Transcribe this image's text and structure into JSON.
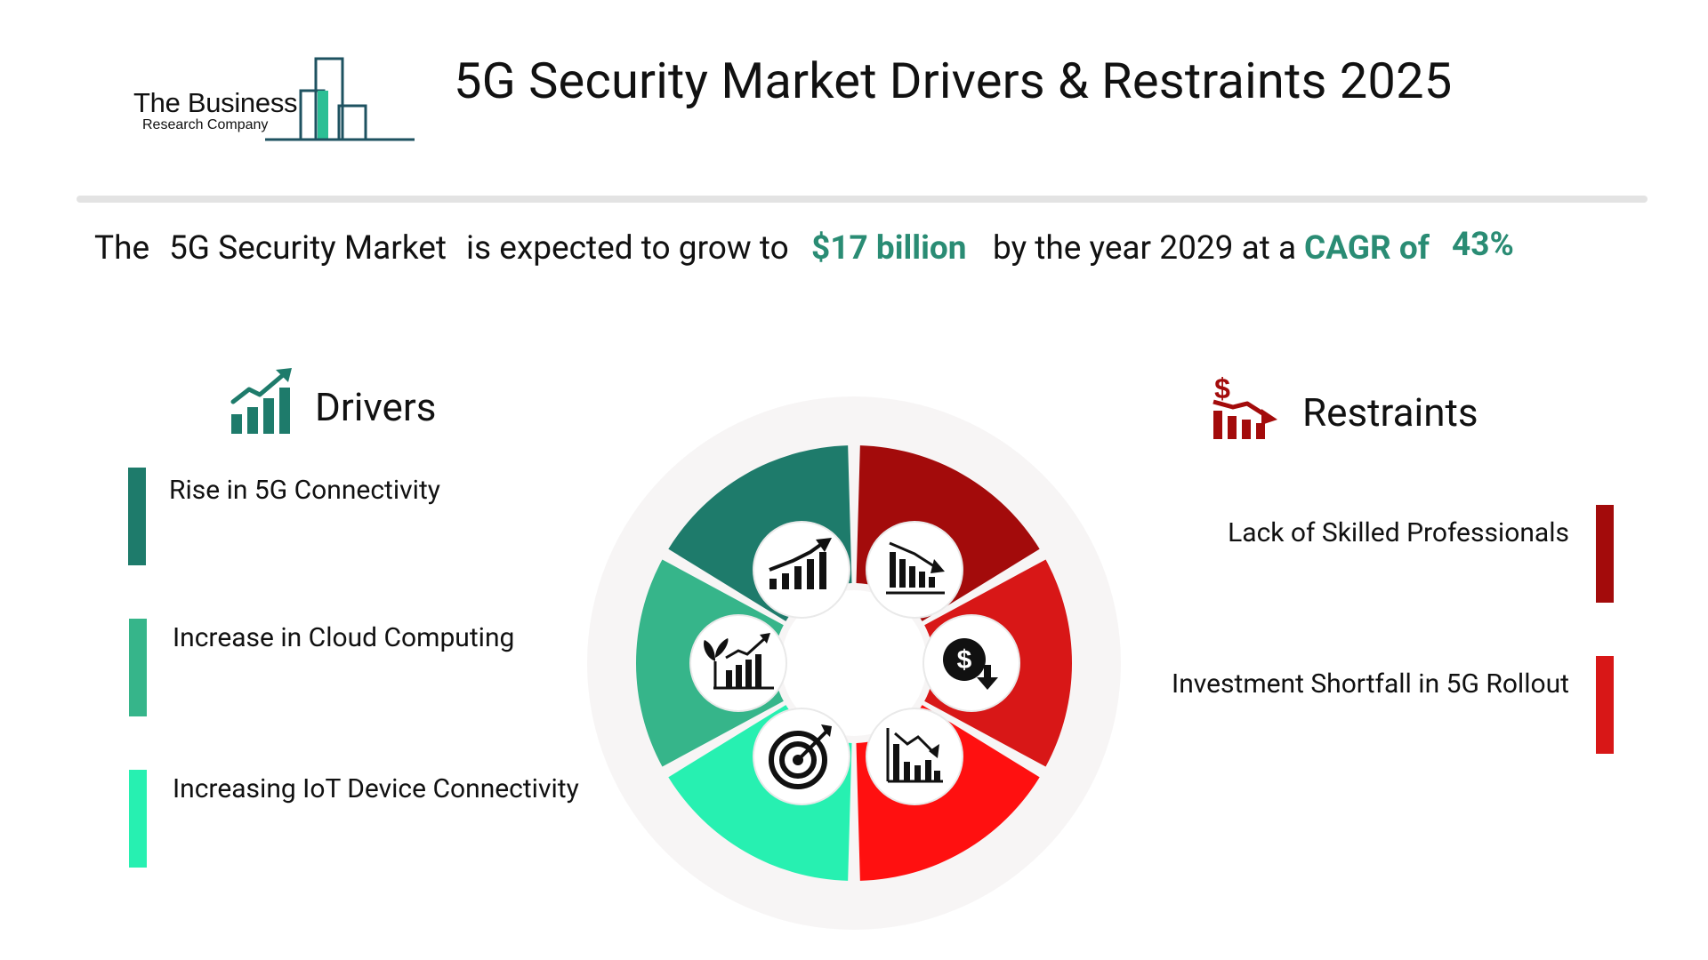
{
  "logo": {
    "name": "The Business",
    "sub": "Research Company"
  },
  "title": "5G Security Market Drivers & Restraints 2025",
  "headline": {
    "the": "The",
    "market": "5G Security Market",
    "mid": "is expected to grow to",
    "value": "$17 billion",
    "by": "by the year 2029 at a",
    "cagr_label": "CAGR of",
    "cagr_value": "43%"
  },
  "drivers": {
    "title": "Drivers",
    "icon": "growth-chart-icon",
    "items": [
      {
        "label": "Rise in 5G Connectivity",
        "color": "#1e7b6b"
      },
      {
        "label": "Increase in Cloud Computing",
        "color": "#36b58a"
      },
      {
        "label": "Increasing IoT Device Connectivity",
        "color": "#27f0b1"
      }
    ]
  },
  "restraints": {
    "title": "Restraints",
    "icon": "dollar-decline-chart-icon",
    "items": [
      {
        "label": "Lack of Skilled Professionals",
        "color": "#a30b0b"
      },
      {
        "label": "Investment Shortfall in 5G Rollout",
        "color": "#d81717"
      }
    ]
  },
  "wheel": {
    "segments": [
      "#1e7b6b",
      "#36b58a",
      "#27f0b1",
      "#a30b0b",
      "#d81717",
      "#ff1010"
    ],
    "icons": [
      "rising-chart-icon",
      "plant-growth-chart-icon",
      "target-icon",
      "declining-bars-icon",
      "dollar-down-icon",
      "declining-chart-icon"
    ]
  }
}
